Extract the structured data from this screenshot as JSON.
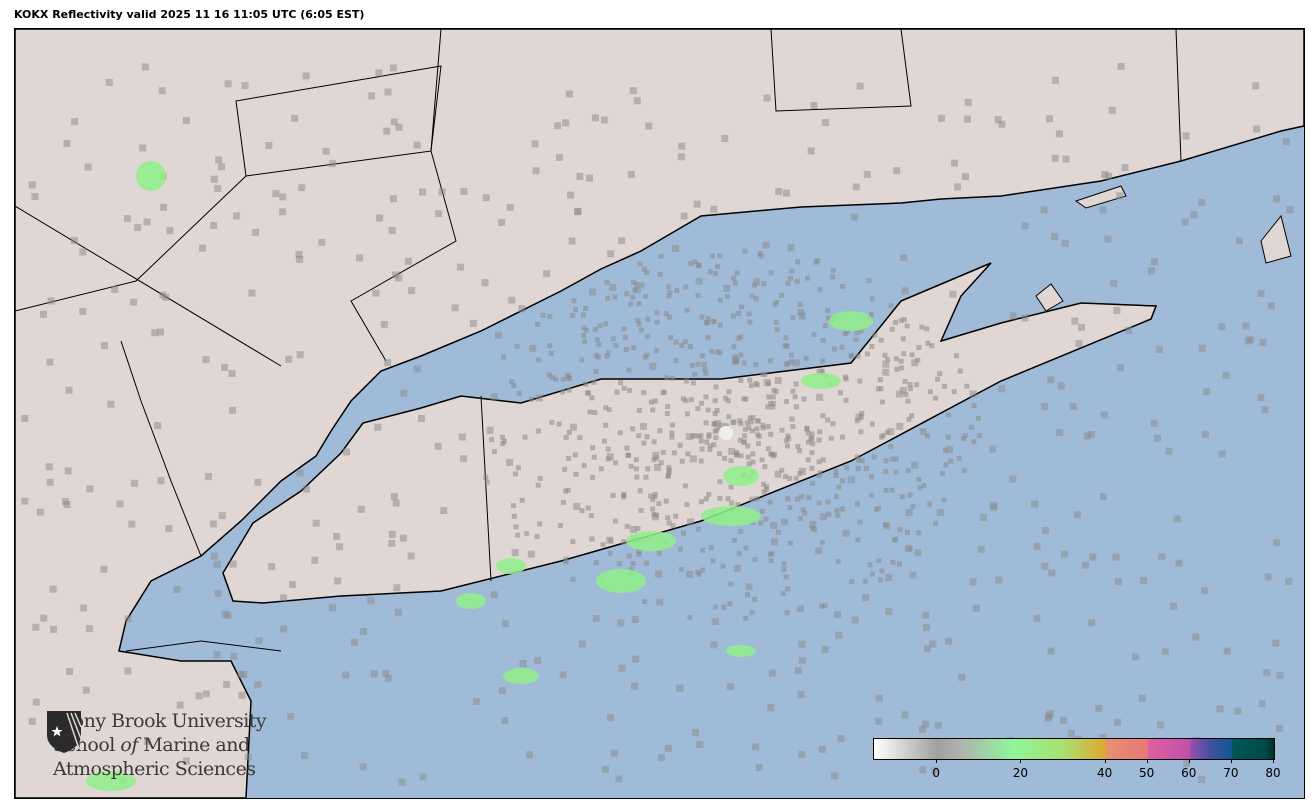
{
  "title": "KOKX Reflectivity valid 2025 11 16 11:05 UTC (6:05 EST)",
  "map": {
    "colors": {
      "water": "#9fbbd8",
      "land": "#e0d6d4",
      "border": "#000000",
      "echo_gray": "#8a8a8a",
      "echo_green": "#8ff08a"
    }
  },
  "logo": {
    "line1": "Stony Brook University",
    "line2_a": "School ",
    "line2_b": "of",
    "line2_c": " Marine and",
    "line3": "Atmospheric Sciences"
  },
  "colorbar": {
    "range": [
      -15,
      80
    ],
    "ticks": [
      "0",
      "20",
      "40",
      "50",
      "60",
      "70",
      "80"
    ],
    "tick_values": [
      0,
      20,
      40,
      50,
      60,
      70,
      80
    ],
    "stops": [
      {
        "v": -15,
        "c": "#ffffff"
      },
      {
        "v": 0,
        "c": "#a0a0a0"
      },
      {
        "v": 5,
        "c": "#b0b0b0"
      },
      {
        "v": 18,
        "c": "#8ff59a"
      },
      {
        "v": 30,
        "c": "#a8e070"
      },
      {
        "v": 40,
        "c": "#e0a830"
      },
      {
        "v": 40.1,
        "c": "#e89070"
      },
      {
        "v": 50,
        "c": "#e87878"
      },
      {
        "v": 50.1,
        "c": "#e060a0"
      },
      {
        "v": 60,
        "c": "#c050a8"
      },
      {
        "v": 60.1,
        "c": "#9850b0"
      },
      {
        "v": 65,
        "c": "#4050a0"
      },
      {
        "v": 70,
        "c": "#105890"
      },
      {
        "v": 70.1,
        "c": "#005858"
      },
      {
        "v": 78,
        "c": "#004848"
      },
      {
        "v": 80,
        "c": "#003020"
      }
    ]
  }
}
